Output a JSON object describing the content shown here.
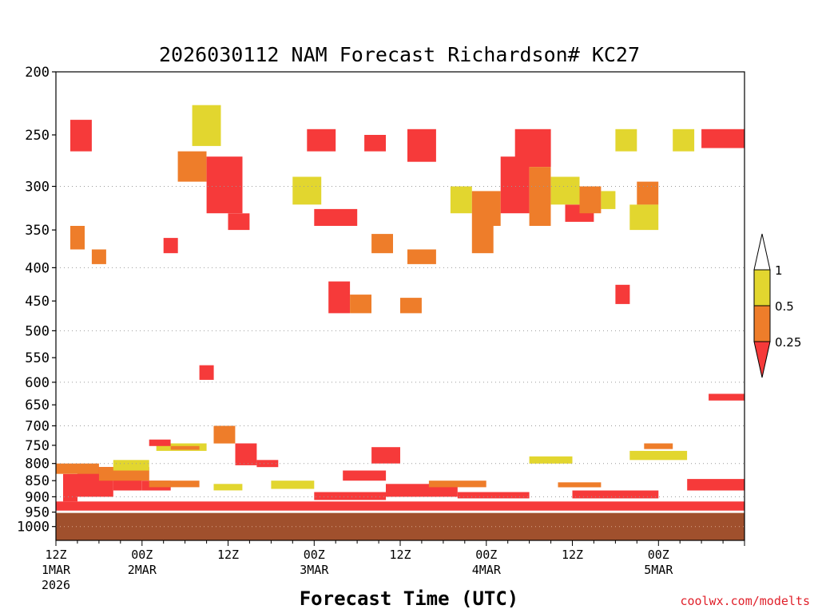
{
  "chart_data": {
    "type": "heatmap",
    "title": "2026030112 NAM Forecast Richardson# KC27",
    "xlabel": "Forecast Time (UTC)",
    "ylabel": "",
    "credit": "coolwx.com/modelts",
    "x_range_hours": [
      0,
      96
    ],
    "y_axis": {
      "unit": "hPa",
      "scale": "log",
      "range": [
        1050,
        200
      ],
      "ticks": [
        "200",
        "250",
        "300",
        "350",
        "400",
        "450",
        "500",
        "550",
        "600",
        "650",
        "700",
        "750",
        "800",
        "850",
        "900",
        "950",
        "1000"
      ],
      "dotted_gridlines": [
        300,
        400,
        500,
        600,
        700,
        800,
        900,
        1000
      ]
    },
    "x_ticks": [
      {
        "hour": 0,
        "time": "12Z",
        "date": "1MAR",
        "year": "2026"
      },
      {
        "hour": 12,
        "time": "00Z",
        "date": "2MAR",
        "year": ""
      },
      {
        "hour": 24,
        "time": "12Z",
        "date": "",
        "year": ""
      },
      {
        "hour": 36,
        "time": "00Z",
        "date": "3MAR",
        "year": ""
      },
      {
        "hour": 48,
        "time": "12Z",
        "date": "",
        "year": ""
      },
      {
        "hour": 60,
        "time": "00Z",
        "date": "4MAR",
        "year": ""
      },
      {
        "hour": 72,
        "time": "12Z",
        "date": "",
        "year": ""
      },
      {
        "hour": 84,
        "time": "00Z",
        "date": "5MAR",
        "year": ""
      }
    ],
    "legend": {
      "placement": "right",
      "labels": [
        "1",
        "0.5",
        "0.25"
      ],
      "bins": [
        {
          "range": "0.5-1",
          "color": "#e2d62f"
        },
        {
          "range": "0.25-0.5",
          "color": "#ee7d2a"
        },
        {
          "range": "<0.25",
          "color": "#f63a3a"
        }
      ]
    },
    "colors": {
      "ri_lt_025": "#f63a3a",
      "ri_025_05": "#ee7d2a",
      "ri_05_1": "#e2d62f",
      "below_ground": "#a0502d"
    },
    "surface_pressure_hpa": 950,
    "patches": [
      {
        "x0": 0,
        "x1": 96,
        "p0": 915,
        "p1": 945,
        "bin": "<0.25"
      },
      {
        "x0": 1,
        "x1": 3,
        "p0": 830,
        "p1": 915,
        "bin": "<0.25"
      },
      {
        "x0": 3,
        "x1": 8,
        "p0": 810,
        "p1": 900,
        "bin": "<0.25"
      },
      {
        "x0": 8,
        "x1": 12,
        "p0": 830,
        "p1": 880,
        "bin": "<0.25"
      },
      {
        "x0": 12,
        "x1": 16,
        "p0": 850,
        "p1": 880,
        "bin": "<0.25"
      },
      {
        "x0": 0,
        "x1": 6,
        "p0": 800,
        "p1": 830,
        "bin": "0.25-0.5"
      },
      {
        "x0": 6,
        "x1": 13,
        "p0": 810,
        "p1": 850,
        "bin": "0.25-0.5"
      },
      {
        "x0": 13,
        "x1": 20,
        "p0": 850,
        "p1": 870,
        "bin": "0.25-0.5"
      },
      {
        "x0": 8,
        "x1": 13,
        "p0": 790,
        "p1": 820,
        "bin": "0.5-1"
      },
      {
        "x0": 14,
        "x1": 21,
        "p0": 745,
        "p1": 765,
        "bin": "0.5-1"
      },
      {
        "x0": 13,
        "x1": 16,
        "p0": 735,
        "p1": 752,
        "bin": "<0.25"
      },
      {
        "x0": 16,
        "x1": 20,
        "p0": 752,
        "p1": 762,
        "bin": "0.25-0.5"
      },
      {
        "x0": 22,
        "x1": 25,
        "p0": 700,
        "p1": 745,
        "bin": "0.25-0.5"
      },
      {
        "x0": 25,
        "x1": 28,
        "p0": 745,
        "p1": 805,
        "bin": "<0.25"
      },
      {
        "x0": 28,
        "x1": 31,
        "p0": 790,
        "p1": 810,
        "bin": "<0.25"
      },
      {
        "x0": 22,
        "x1": 26,
        "p0": 860,
        "p1": 880,
        "bin": "0.5-1"
      },
      {
        "x0": 30,
        "x1": 36,
        "p0": 850,
        "p1": 875,
        "bin": "0.5-1"
      },
      {
        "x0": 36,
        "x1": 46,
        "p0": 885,
        "p1": 910,
        "bin": "<0.25"
      },
      {
        "x0": 40,
        "x1": 46,
        "p0": 820,
        "p1": 850,
        "bin": "<0.25"
      },
      {
        "x0": 44,
        "x1": 48,
        "p0": 755,
        "p1": 800,
        "bin": "<0.25"
      },
      {
        "x0": 46,
        "x1": 56,
        "p0": 860,
        "p1": 900,
        "bin": "<0.25"
      },
      {
        "x0": 52,
        "x1": 60,
        "p0": 850,
        "p1": 870,
        "bin": "0.25-0.5"
      },
      {
        "x0": 56,
        "x1": 66,
        "p0": 885,
        "p1": 905,
        "bin": "<0.25"
      },
      {
        "x0": 66,
        "x1": 72,
        "p0": 780,
        "p1": 800,
        "bin": "0.5-1"
      },
      {
        "x0": 70,
        "x1": 76,
        "p0": 855,
        "p1": 870,
        "bin": "0.25-0.5"
      },
      {
        "x0": 72,
        "x1": 84,
        "p0": 880,
        "p1": 905,
        "bin": "<0.25"
      },
      {
        "x0": 80,
        "x1": 88,
        "p0": 765,
        "p1": 790,
        "bin": "0.5-1"
      },
      {
        "x0": 82,
        "x1": 86,
        "p0": 745,
        "p1": 760,
        "bin": "0.25-0.5"
      },
      {
        "x0": 88,
        "x1": 96,
        "p0": 845,
        "p1": 880,
        "bin": "<0.25"
      },
      {
        "x0": 91,
        "x1": 96,
        "p0": 625,
        "p1": 640,
        "bin": "<0.25"
      },
      {
        "x0": 2,
        "x1": 5,
        "p0": 237,
        "p1": 265,
        "bin": "<0.25"
      },
      {
        "x0": 17,
        "x1": 21,
        "p0": 265,
        "p1": 295,
        "bin": "0.25-0.5"
      },
      {
        "x0": 21,
        "x1": 26,
        "p0": 270,
        "p1": 330,
        "bin": "<0.25"
      },
      {
        "x0": 24,
        "x1": 27,
        "p0": 330,
        "p1": 350,
        "bin": "<0.25"
      },
      {
        "x0": 19,
        "x1": 23,
        "p0": 225,
        "p1": 260,
        "bin": "0.5-1"
      },
      {
        "x0": 33,
        "x1": 37,
        "p0": 290,
        "p1": 320,
        "bin": "0.5-1"
      },
      {
        "x0": 36,
        "x1": 42,
        "p0": 325,
        "p1": 345,
        "bin": "<0.25"
      },
      {
        "x0": 35,
        "x1": 39,
        "p0": 245,
        "p1": 265,
        "bin": "<0.25"
      },
      {
        "x0": 43,
        "x1": 46,
        "p0": 250,
        "p1": 265,
        "bin": "<0.25"
      },
      {
        "x0": 44,
        "x1": 47,
        "p0": 355,
        "p1": 380,
        "bin": "0.25-0.5"
      },
      {
        "x0": 38,
        "x1": 41,
        "p0": 420,
        "p1": 470,
        "bin": "<0.25"
      },
      {
        "x0": 41,
        "x1": 44,
        "p0": 440,
        "p1": 470,
        "bin": "0.25-0.5"
      },
      {
        "x0": 49,
        "x1": 53,
        "p0": 245,
        "p1": 275,
        "bin": "<0.25"
      },
      {
        "x0": 49,
        "x1": 53,
        "p0": 375,
        "p1": 395,
        "bin": "0.25-0.5"
      },
      {
        "x0": 48,
        "x1": 51,
        "p0": 445,
        "p1": 470,
        "bin": "0.25-0.5"
      },
      {
        "x0": 55,
        "x1": 58,
        "p0": 300,
        "p1": 330,
        "bin": "0.5-1"
      },
      {
        "x0": 58,
        "x1": 62,
        "p0": 305,
        "p1": 345,
        "bin": "0.25-0.5"
      },
      {
        "x0": 58,
        "x1": 61,
        "p0": 345,
        "p1": 380,
        "bin": "0.25-0.5"
      },
      {
        "x0": 62,
        "x1": 66,
        "p0": 270,
        "p1": 330,
        "bin": "<0.25"
      },
      {
        "x0": 64,
        "x1": 69,
        "p0": 245,
        "p1": 280,
        "bin": "<0.25"
      },
      {
        "x0": 66,
        "x1": 69,
        "p0": 280,
        "p1": 345,
        "bin": "0.25-0.5"
      },
      {
        "x0": 69,
        "x1": 73,
        "p0": 290,
        "p1": 320,
        "bin": "0.5-1"
      },
      {
        "x0": 71,
        "x1": 75,
        "p0": 320,
        "p1": 340,
        "bin": "<0.25"
      },
      {
        "x0": 73,
        "x1": 76,
        "p0": 300,
        "p1": 330,
        "bin": "0.25-0.5"
      },
      {
        "x0": 76,
        "x1": 78,
        "p0": 305,
        "p1": 325,
        "bin": "0.5-1"
      },
      {
        "x0": 78,
        "x1": 80,
        "p0": 425,
        "p1": 455,
        "bin": "<0.25"
      },
      {
        "x0": 78,
        "x1": 81,
        "p0": 245,
        "p1": 265,
        "bin": "0.5-1"
      },
      {
        "x0": 81,
        "x1": 84,
        "p0": 295,
        "p1": 320,
        "bin": "0.25-0.5"
      },
      {
        "x0": 80,
        "x1": 84,
        "p0": 320,
        "p1": 350,
        "bin": "0.5-1"
      },
      {
        "x0": 86,
        "x1": 89,
        "p0": 245,
        "p1": 265,
        "bin": "0.5-1"
      },
      {
        "x0": 90,
        "x1": 96,
        "p0": 245,
        "p1": 262,
        "bin": "<0.25"
      },
      {
        "x0": 2,
        "x1": 4,
        "p0": 345,
        "p1": 375,
        "bin": "0.25-0.5"
      },
      {
        "x0": 5,
        "x1": 7,
        "p0": 375,
        "p1": 395,
        "bin": "0.25-0.5"
      },
      {
        "x0": 15,
        "x1": 17,
        "p0": 360,
        "p1": 380,
        "bin": "<0.25"
      },
      {
        "x0": 20,
        "x1": 22,
        "p0": 565,
        "p1": 595,
        "bin": "<0.25"
      }
    ]
  }
}
